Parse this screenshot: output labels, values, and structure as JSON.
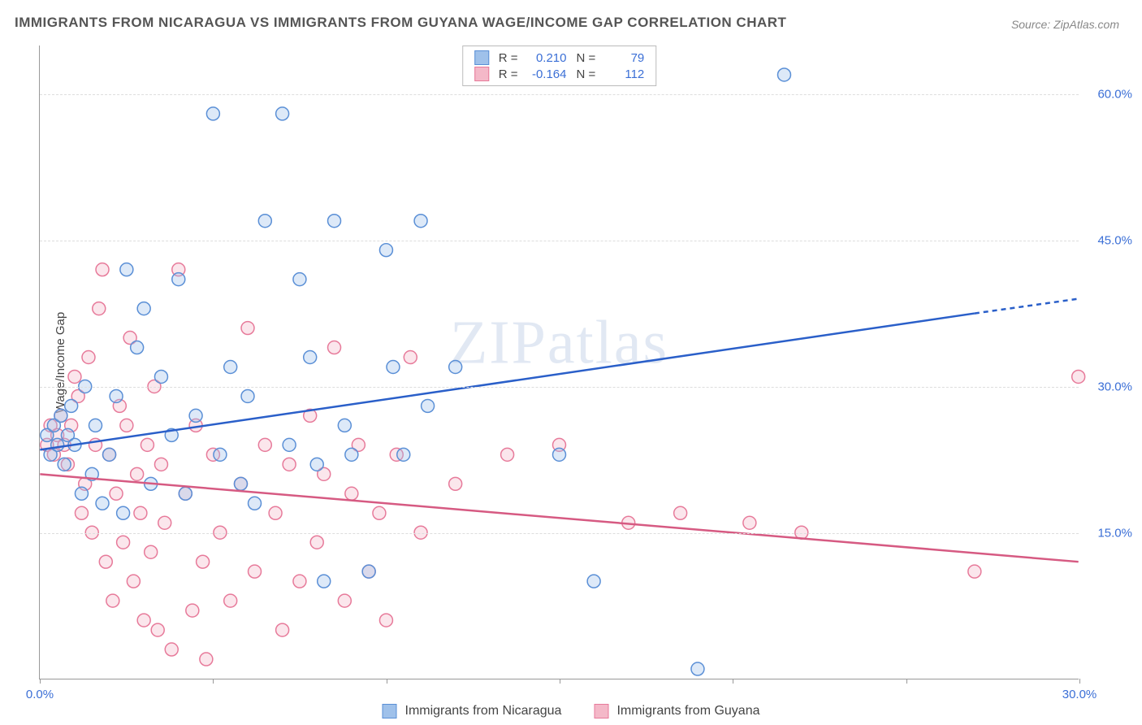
{
  "title": "IMMIGRANTS FROM NICARAGUA VS IMMIGRANTS FROM GUYANA WAGE/INCOME GAP CORRELATION CHART",
  "source": "Source: ZipAtlas.com",
  "y_axis_label": "Wage/Income Gap",
  "watermark": "ZIPatlas",
  "chart": {
    "type": "scatter-with-regression",
    "background_color": "#ffffff",
    "grid_color": "#dddddd",
    "axis_color": "#999999",
    "tick_label_color": "#3b6fd6",
    "xlim": [
      0,
      30
    ],
    "ylim": [
      0,
      65
    ],
    "x_ticks": [
      0,
      5,
      10,
      15,
      20,
      25,
      30
    ],
    "x_tick_labels": {
      "0": "0.0%",
      "30": "30.0%"
    },
    "y_ticks": [
      15,
      30,
      45,
      60
    ],
    "y_tick_labels": {
      "15": "15.0%",
      "30": "30.0%",
      "45": "45.0%",
      "60": "60.0%"
    },
    "marker_radius": 8,
    "marker_fill_opacity": 0.35,
    "marker_stroke_width": 1.5,
    "line_width": 2.5,
    "series": [
      {
        "key": "nicaragua",
        "label": "Immigrants from Nicaragua",
        "color_fill": "#9fc1ea",
        "color_stroke": "#5a8fd6",
        "line_color": "#2a5fc9",
        "R": "0.210",
        "N": "79",
        "regression": {
          "x1": 0,
          "y1": 23.5,
          "x2": 27,
          "y2": 37.5,
          "dash_extend_to_x": 30,
          "dash_extend_to_y": 39
        },
        "points": [
          [
            0.2,
            25
          ],
          [
            0.3,
            23
          ],
          [
            0.4,
            26
          ],
          [
            0.5,
            24
          ],
          [
            0.6,
            27
          ],
          [
            0.7,
            22
          ],
          [
            0.8,
            25
          ],
          [
            0.9,
            28
          ],
          [
            1.0,
            24
          ],
          [
            1.2,
            19
          ],
          [
            1.3,
            30
          ],
          [
            1.5,
            21
          ],
          [
            1.6,
            26
          ],
          [
            1.8,
            18
          ],
          [
            2.0,
            23
          ],
          [
            2.2,
            29
          ],
          [
            2.4,
            17
          ],
          [
            2.5,
            42
          ],
          [
            2.8,
            34
          ],
          [
            3.0,
            38
          ],
          [
            3.2,
            20
          ],
          [
            3.5,
            31
          ],
          [
            3.8,
            25
          ],
          [
            4.0,
            41
          ],
          [
            4.2,
            19
          ],
          [
            4.5,
            27
          ],
          [
            5.0,
            58
          ],
          [
            5.2,
            23
          ],
          [
            5.5,
            32
          ],
          [
            5.8,
            20
          ],
          [
            6.0,
            29
          ],
          [
            6.2,
            18
          ],
          [
            6.5,
            47
          ],
          [
            7.0,
            58
          ],
          [
            7.2,
            24
          ],
          [
            7.5,
            41
          ],
          [
            7.8,
            33
          ],
          [
            8.0,
            22
          ],
          [
            8.2,
            10
          ],
          [
            8.5,
            47
          ],
          [
            8.8,
            26
          ],
          [
            9.0,
            23
          ],
          [
            9.5,
            11
          ],
          [
            10.0,
            44
          ],
          [
            10.2,
            32
          ],
          [
            10.5,
            23
          ],
          [
            11.0,
            47
          ],
          [
            11.2,
            28
          ],
          [
            12.0,
            32
          ],
          [
            15.0,
            23
          ],
          [
            16.0,
            10
          ],
          [
            19.0,
            1
          ],
          [
            21.5,
            62
          ]
        ]
      },
      {
        "key": "guyana",
        "label": "Immigrants from Guyana",
        "color_fill": "#f4b8c8",
        "color_stroke": "#e77a9a",
        "line_color": "#d65a82",
        "R": "-0.164",
        "N": "112",
        "regression": {
          "x1": 0,
          "y1": 21,
          "x2": 30,
          "y2": 12
        },
        "points": [
          [
            0.2,
            24
          ],
          [
            0.3,
            26
          ],
          [
            0.4,
            23
          ],
          [
            0.5,
            25
          ],
          [
            0.6,
            27
          ],
          [
            0.7,
            24
          ],
          [
            0.8,
            22
          ],
          [
            0.9,
            26
          ],
          [
            1.0,
            31
          ],
          [
            1.1,
            29
          ],
          [
            1.2,
            17
          ],
          [
            1.3,
            20
          ],
          [
            1.4,
            33
          ],
          [
            1.5,
            15
          ],
          [
            1.6,
            24
          ],
          [
            1.7,
            38
          ],
          [
            1.8,
            42
          ],
          [
            1.9,
            12
          ],
          [
            2.0,
            23
          ],
          [
            2.1,
            8
          ],
          [
            2.2,
            19
          ],
          [
            2.3,
            28
          ],
          [
            2.4,
            14
          ],
          [
            2.5,
            26
          ],
          [
            2.6,
            35
          ],
          [
            2.7,
            10
          ],
          [
            2.8,
            21
          ],
          [
            2.9,
            17
          ],
          [
            3.0,
            6
          ],
          [
            3.1,
            24
          ],
          [
            3.2,
            13
          ],
          [
            3.3,
            30
          ],
          [
            3.4,
            5
          ],
          [
            3.5,
            22
          ],
          [
            3.6,
            16
          ],
          [
            3.8,
            3
          ],
          [
            4.0,
            42
          ],
          [
            4.2,
            19
          ],
          [
            4.4,
            7
          ],
          [
            4.5,
            26
          ],
          [
            4.7,
            12
          ],
          [
            4.8,
            2
          ],
          [
            5.0,
            23
          ],
          [
            5.2,
            15
          ],
          [
            5.5,
            8
          ],
          [
            5.8,
            20
          ],
          [
            6.0,
            36
          ],
          [
            6.2,
            11
          ],
          [
            6.5,
            24
          ],
          [
            6.8,
            17
          ],
          [
            7.0,
            5
          ],
          [
            7.2,
            22
          ],
          [
            7.5,
            10
          ],
          [
            7.8,
            27
          ],
          [
            8.0,
            14
          ],
          [
            8.2,
            21
          ],
          [
            8.5,
            34
          ],
          [
            8.8,
            8
          ],
          [
            9.0,
            19
          ],
          [
            9.2,
            24
          ],
          [
            9.5,
            11
          ],
          [
            9.8,
            17
          ],
          [
            10.0,
            6
          ],
          [
            10.3,
            23
          ],
          [
            10.7,
            33
          ],
          [
            11.0,
            15
          ],
          [
            12.0,
            20
          ],
          [
            13.5,
            23
          ],
          [
            15.0,
            24
          ],
          [
            17.0,
            16
          ],
          [
            18.5,
            17
          ],
          [
            20.5,
            16
          ],
          [
            22.0,
            15
          ],
          [
            27.0,
            11
          ],
          [
            30.0,
            31
          ]
        ]
      }
    ]
  },
  "legend_bottom": [
    {
      "key": "nicaragua",
      "label": "Immigrants from Nicaragua"
    },
    {
      "key": "guyana",
      "label": "Immigrants from Guyana"
    }
  ]
}
